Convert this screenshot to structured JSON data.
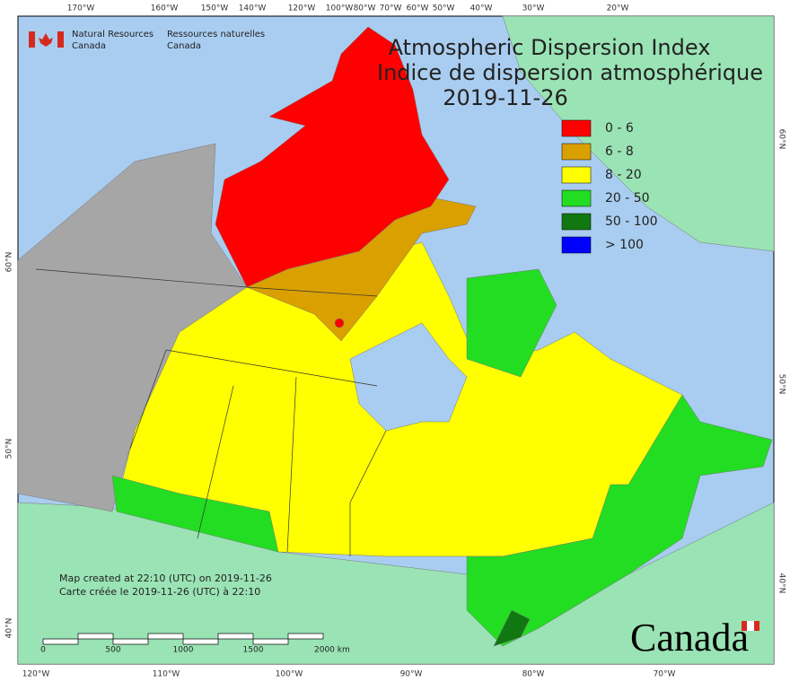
{
  "org": {
    "en": [
      "Natural Resources",
      "Canada"
    ],
    "fr": [
      "Ressources naturelles",
      "Canada"
    ]
  },
  "title": [
    "Atmospheric Dispersion Index",
    "Indice de dispersion atmosphérique",
    "2019-11-26"
  ],
  "legend": [
    {
      "label": "0 - 6",
      "color": "#ff0000"
    },
    {
      "label": "6 - 8",
      "color": "#d9a000"
    },
    {
      "label": "8 - 20",
      "color": "#ffff00"
    },
    {
      "label": "20 - 50",
      "color": "#22dd22"
    },
    {
      "label": "50 - 100",
      "color": "#117711"
    },
    {
      "label": "> 100",
      "color": "#0000ff"
    }
  ],
  "top_labels": [
    "170°W",
    "160°W",
    "150°W",
    "140°W",
    "120°W",
    "100°W",
    "80°W",
    "70°W",
    "60°W",
    "50°W",
    "40°W",
    "30°W",
    "20°W"
  ],
  "bottom_labels": [
    "120°W",
    "110°W",
    "100°W",
    "90°W",
    "80°W",
    "70°W"
  ],
  "left_labels": [
    "60°N",
    "50°N",
    "40°N"
  ],
  "right_labels": [
    "60°N",
    "50°N",
    "40°N"
  ],
  "notes": [
    "Map created at 22:10 (UTC) on 2019-11-26",
    "Carte créée le 2019-11-26 (UTC) à 22:10"
  ],
  "scale_labels": [
    "0",
    "500",
    "1000",
    "1500",
    "2000 km"
  ],
  "wordmark": "Canada"
}
